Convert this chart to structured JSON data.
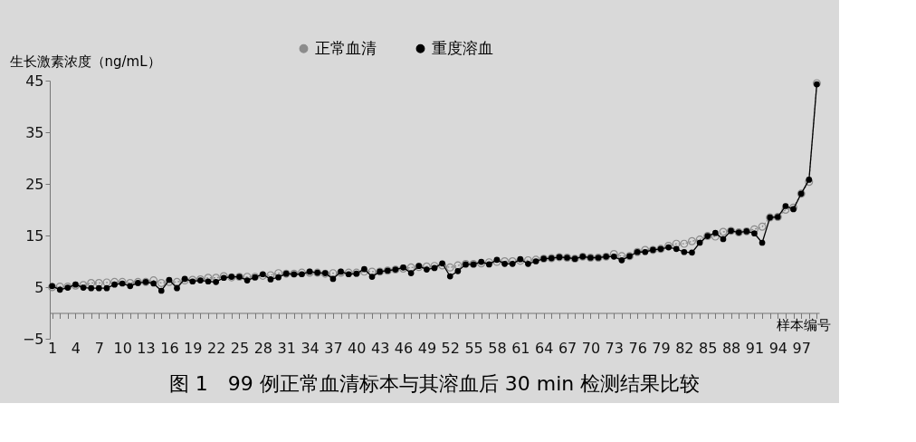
{
  "chart_data": {
    "type": "line",
    "title": "图 1　99 例正常血清标本与其溶血后 30 min 检测结果比较",
    "xlabel": "样本编号",
    "ylabel": "生长激素浓度（ng/mL）",
    "categories": [
      "1",
      null,
      null,
      "4",
      null,
      null,
      "7",
      null,
      null,
      "10",
      null,
      null,
      "13",
      null,
      null,
      "16",
      null,
      null,
      "19",
      null,
      null,
      "22",
      null,
      null,
      "25",
      null,
      null,
      "28",
      null,
      null,
      "31",
      null,
      null,
      "34",
      null,
      null,
      "37",
      null,
      null,
      "40",
      null,
      null,
      "43",
      null,
      null,
      "46",
      null,
      null,
      "49",
      null,
      null,
      "52",
      null,
      null,
      "55",
      null,
      null,
      "58",
      null,
      null,
      "61",
      null,
      null,
      "64",
      null,
      null,
      "67",
      null,
      null,
      "70",
      null,
      null,
      "73",
      null,
      null,
      "76",
      null,
      null,
      "79",
      null,
      null,
      "82",
      null,
      null,
      "85",
      null,
      null,
      "88",
      null,
      null,
      "91",
      null,
      null,
      "94",
      null,
      null,
      "97",
      null,
      null
    ],
    "ylim": [
      -5,
      45
    ],
    "yticks": [
      -5,
      5,
      15,
      25,
      35,
      45
    ],
    "legend": "top",
    "series": [
      {
        "name": "正常血清",
        "color": "#8c8c8c",
        "marker": "circle",
        "line_style": "dotted",
        "values": [
          5.0,
          5.1,
          5.1,
          5.3,
          5.4,
          5.8,
          5.8,
          5.9,
          6.0,
          6.0,
          5.8,
          6.0,
          6.0,
          6.3,
          5.8,
          6.0,
          6.0,
          6.3,
          6.4,
          6.5,
          6.8,
          6.8,
          7.1,
          6.9,
          7.0,
          7.0,
          7.0,
          7.2,
          7.3,
          7.7,
          7.6,
          7.6,
          7.8,
          7.8,
          7.8,
          7.6,
          7.7,
          7.8,
          7.8,
          7.8,
          8.0,
          8.0,
          8.0,
          8.2,
          8.4,
          8.6,
          8.8,
          8.9,
          9.0,
          9.1,
          9.2,
          8.8,
          9.2,
          9.5,
          9.5,
          9.6,
          9.8,
          9.9,
          10.0,
          10.0,
          10.1,
          10.2,
          10.3,
          10.5,
          10.6,
          10.8,
          10.7,
          10.5,
          10.9,
          10.7,
          10.7,
          10.9,
          11.4,
          11.0,
          11.0,
          11.8,
          12.2,
          12.2,
          12.4,
          13.0,
          13.4,
          13.4,
          13.9,
          14.2,
          14.9,
          14.8,
          15.7,
          15.9,
          15.6,
          15.8,
          16.2,
          16.7,
          18.5,
          18.6,
          20.0,
          20.4,
          23.1,
          25.4,
          44.5
        ]
      },
      {
        "name": "重度溶血",
        "color": "#000000",
        "marker": "circle",
        "line_style": "solid",
        "values": [
          5.2,
          4.5,
          4.9,
          5.5,
          4.9,
          4.8,
          4.8,
          4.8,
          5.5,
          5.7,
          5.2,
          5.8,
          6.0,
          5.7,
          4.3,
          6.4,
          4.8,
          6.6,
          6.1,
          6.3,
          6.1,
          6.0,
          6.8,
          7.0,
          7.0,
          6.3,
          6.9,
          7.5,
          6.5,
          6.9,
          7.6,
          7.5,
          7.5,
          8.0,
          7.8,
          7.7,
          6.6,
          8.0,
          7.5,
          7.6,
          8.5,
          7.0,
          8.0,
          8.2,
          8.4,
          8.8,
          7.7,
          9.1,
          8.4,
          8.7,
          9.6,
          7.1,
          8.1,
          9.4,
          9.4,
          9.9,
          9.4,
          10.3,
          9.5,
          9.5,
          10.4,
          9.5,
          10.0,
          10.5,
          10.6,
          10.8,
          10.7,
          10.5,
          10.9,
          10.7,
          10.7,
          10.9,
          10.9,
          10.2,
          11.0,
          11.8,
          11.8,
          12.2,
          12.4,
          12.7,
          12.4,
          11.8,
          11.7,
          13.6,
          14.9,
          15.5,
          14.3,
          15.9,
          15.6,
          15.8,
          15.4,
          13.6,
          18.5,
          18.6,
          20.7,
          20.1,
          23.1,
          25.8,
          44.3
        ]
      }
    ]
  }
}
